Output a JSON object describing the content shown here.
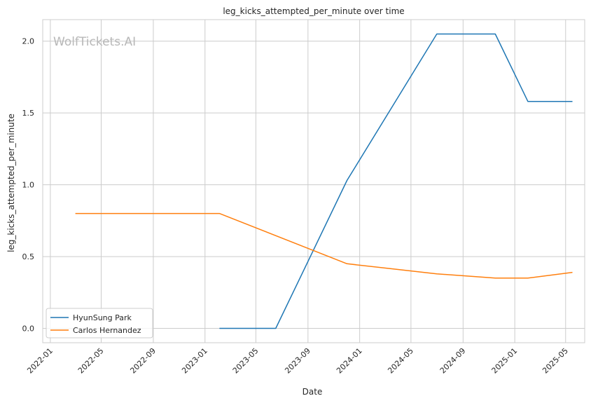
{
  "chart_data": {
    "type": "line",
    "title": "leg_kicks_attempted_per_minute over time",
    "xlabel": "Date",
    "ylabel": "leg_kicks_attempted_per_minute",
    "watermark": "WolfTickets.AI",
    "xlim": [
      "2021-12-14",
      "2025-06-15"
    ],
    "ylim": [
      -0.1,
      2.15
    ],
    "x_ticks": [
      "2022-01",
      "2022-05",
      "2022-09",
      "2023-01",
      "2023-05",
      "2023-09",
      "2024-01",
      "2024-05",
      "2024-09",
      "2025-01",
      "2025-05"
    ],
    "y_ticks": [
      0.0,
      0.5,
      1.0,
      1.5,
      2.0
    ],
    "y_tick_labels": [
      "0.0",
      "0.5",
      "1.0",
      "1.5",
      "2.0"
    ],
    "grid": true,
    "legend_position": "lower-left",
    "series": [
      {
        "name": "HyunSung Park",
        "color": "#1f77b4",
        "x": [
          "2023-02-04",
          "2023-06-17",
          "2023-12-02",
          "2024-07-01",
          "2024-11-16",
          "2025-02-01",
          "2025-05-17"
        ],
        "y": [
          0.0,
          0.0,
          1.03,
          2.05,
          2.05,
          1.58,
          1.58
        ]
      },
      {
        "name": "Carlos Hernandez",
        "color": "#ff7f0e",
        "x": [
          "2022-03-01",
          "2023-02-04",
          "2023-12-02",
          "2024-07-01",
          "2024-11-16",
          "2025-02-01",
          "2025-05-17"
        ],
        "y": [
          0.8,
          0.8,
          0.45,
          0.38,
          0.35,
          0.35,
          0.39
        ]
      }
    ]
  }
}
